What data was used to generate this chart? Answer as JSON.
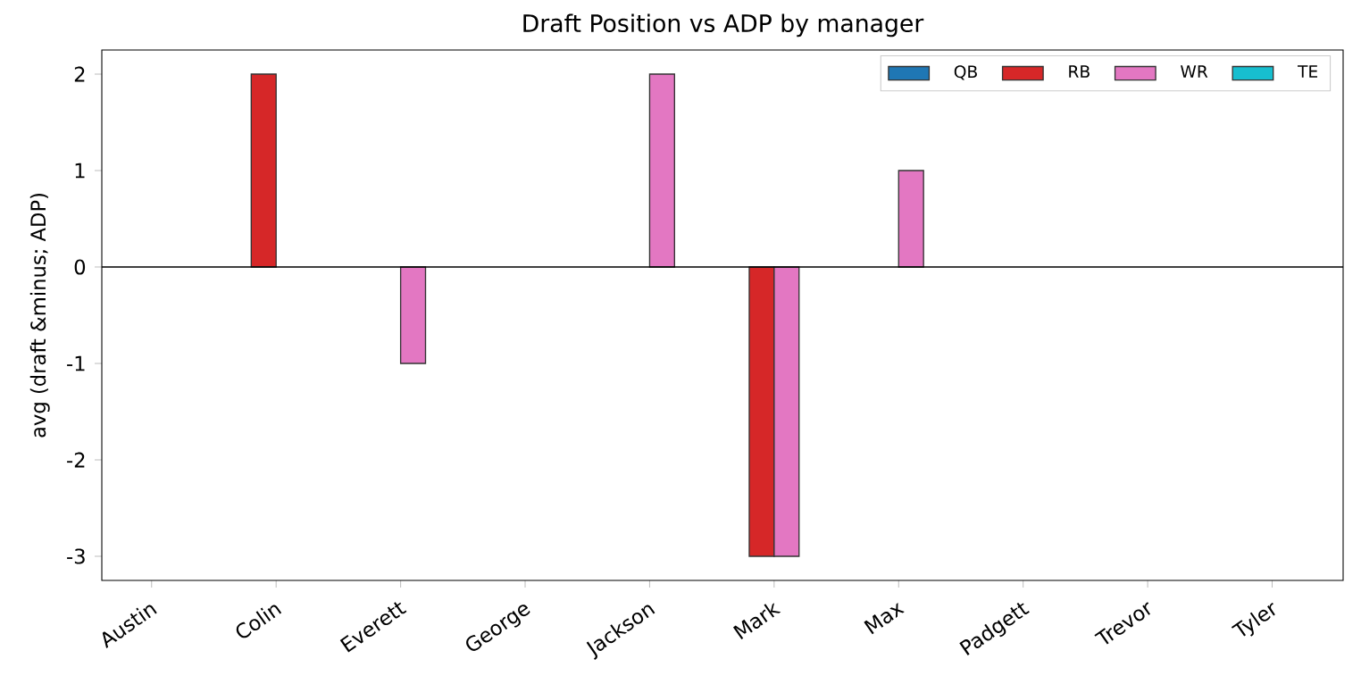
{
  "chart_data": {
    "type": "bar",
    "title": "Draft Position vs ADP by manager",
    "ylabel": "avg (draft &minus; ADP)",
    "categories": [
      "Austin",
      "Colin",
      "Everett",
      "George",
      "Jackson",
      "Mark",
      "Max",
      "Padgett",
      "Trevor",
      "Tyler"
    ],
    "series": [
      {
        "name": "QB",
        "color": "#1f77b4",
        "values": [
          null,
          null,
          null,
          null,
          null,
          null,
          null,
          null,
          null,
          null
        ]
      },
      {
        "name": "RB",
        "color": "#d62728",
        "values": [
          null,
          2,
          null,
          null,
          null,
          -3,
          null,
          null,
          null,
          null
        ]
      },
      {
        "name": "WR",
        "color": "#e377c2",
        "values": [
          null,
          null,
          -1,
          null,
          2,
          -3,
          1,
          null,
          null,
          null
        ]
      },
      {
        "name": "TE",
        "color": "#17becf",
        "values": [
          null,
          null,
          null,
          null,
          null,
          null,
          null,
          null,
          null,
          null
        ]
      }
    ],
    "ylim": [
      -3.25,
      2.25
    ],
    "yticks": [
      -3,
      -2,
      -1,
      0,
      1,
      2
    ],
    "grid": false,
    "legend": "top right",
    "ref_lines": [
      {
        "axis": "y",
        "value": 0,
        "color": "#000000"
      }
    ]
  }
}
